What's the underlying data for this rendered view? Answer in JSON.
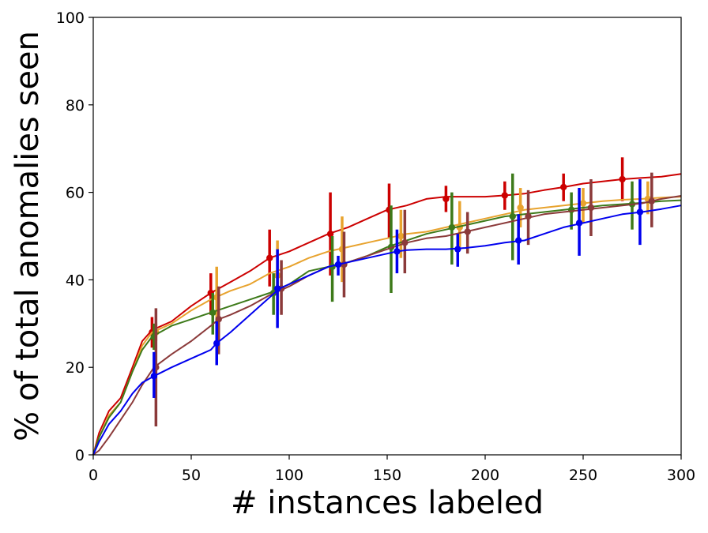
{
  "chart_data": {
    "type": "line",
    "title": "",
    "xlabel": "# instances labeled",
    "ylabel": "% of total anomalies seen",
    "xlim": [
      0,
      300
    ],
    "ylim": [
      0,
      100
    ],
    "xticks": [
      0,
      50,
      100,
      150,
      200,
      250,
      300
    ],
    "yticks": [
      0,
      20,
      40,
      60,
      80,
      100
    ],
    "xtick_labels": [
      "0",
      "50",
      "100",
      "150",
      "200",
      "250",
      "300"
    ],
    "ytick_labels": [
      "0",
      "20",
      "40",
      "60",
      "80",
      "100"
    ],
    "grid": false,
    "legend": "none",
    "series": [
      {
        "name": "red",
        "color": "#cc0000",
        "x": [
          0,
          3,
          8,
          14,
          20,
          25,
          30,
          40,
          50,
          60,
          70,
          80,
          90,
          100,
          110,
          120,
          130,
          140,
          150,
          160,
          170,
          180,
          190,
          200,
          210,
          220,
          230,
          240,
          250,
          260,
          270,
          280,
          290,
          300
        ],
        "y": [
          0,
          5,
          10,
          13,
          20,
          26,
          28.5,
          30.5,
          34,
          37,
          39.5,
          42,
          45,
          46.5,
          48.5,
          50.5,
          52,
          54,
          56,
          57,
          58.5,
          59,
          59,
          59,
          59.3,
          59.7,
          60.5,
          61.2,
          62,
          62.5,
          63,
          63.3,
          63.6,
          64.2
        ],
        "err_x": [
          30,
          60,
          90,
          121,
          151,
          180,
          210,
          240,
          270
        ],
        "err_y": [
          28,
          37,
          45,
          50.5,
          56,
          58.5,
          59.3,
          61.2,
          63
        ],
        "err_lo": [
          24.5,
          32,
          38.5,
          41,
          49.5,
          55.5,
          56,
          58,
          58
        ],
        "err_hi": [
          31.5,
          41.5,
          51.5,
          60,
          62,
          61.5,
          62.5,
          64.3,
          68
        ]
      },
      {
        "name": "orange",
        "color": "#e8a32e",
        "x": [
          0,
          3,
          8,
          14,
          20,
          25,
          30,
          40,
          50,
          60,
          70,
          80,
          90,
          100,
          110,
          120,
          130,
          140,
          150,
          160,
          170,
          180,
          190,
          200,
          210,
          220,
          230,
          240,
          250,
          260,
          270,
          280,
          290,
          300
        ],
        "y": [
          0,
          4,
          9,
          12,
          19,
          25,
          28,
          30,
          33,
          35.5,
          37.5,
          39,
          41.5,
          43,
          45,
          46.5,
          47.5,
          48.5,
          49.5,
          50.5,
          51,
          52,
          53,
          54,
          55,
          56,
          56.5,
          57,
          57.5,
          58,
          58.3,
          58.5,
          58.8,
          59
        ],
        "err_x": [
          32,
          63,
          94,
          127,
          157,
          187,
          218,
          250,
          283
        ],
        "err_y": [
          28,
          36,
          41,
          47,
          50,
          52,
          56.5,
          57.5,
          58.5
        ],
        "err_lo": [
          26,
          29.5,
          33,
          39.5,
          45,
          47.5,
          52,
          53,
          55
        ],
        "err_hi": [
          30,
          43,
          49,
          54.5,
          56,
          58,
          61,
          61,
          62.5
        ]
      },
      {
        "name": "green",
        "color": "#3d7a1a",
        "x": [
          0,
          3,
          8,
          14,
          20,
          25,
          30,
          40,
          50,
          60,
          70,
          80,
          90,
          100,
          110,
          120,
          130,
          140,
          150,
          160,
          170,
          180,
          190,
          200,
          210,
          220,
          230,
          240,
          250,
          260,
          270,
          280,
          290,
          300
        ],
        "y": [
          0,
          4,
          8.5,
          12,
          19,
          24,
          27,
          29.5,
          31,
          32.5,
          34,
          35.5,
          37,
          39,
          42,
          43,
          44,
          45.5,
          47.5,
          49,
          50.5,
          51.5,
          52.5,
          53.5,
          54.5,
          55,
          55.5,
          56,
          56.5,
          57,
          57.3,
          57.6,
          58,
          58.2
        ],
        "err_x": [
          31,
          61,
          92,
          122,
          152,
          183,
          214,
          244,
          275
        ],
        "err_y": [
          27,
          32.5,
          37,
          43,
          47.5,
          52,
          54.5,
          56,
          57.3
        ],
        "err_lo": [
          24,
          27.5,
          32,
          35,
          37,
          43.5,
          44.5,
          51.5,
          51.5
        ],
        "err_hi": [
          30,
          37,
          41.5,
          50,
          57,
          60,
          64.3,
          60,
          62.5
        ]
      },
      {
        "name": "brown",
        "color": "#8b3a3a",
        "x": [
          0,
          3,
          8,
          14,
          20,
          25,
          31,
          40,
          50,
          60,
          64,
          70,
          80,
          90,
          100,
          110,
          120,
          130,
          140,
          150,
          160,
          170,
          180,
          190,
          200,
          210,
          220,
          230,
          240,
          250,
          260,
          270,
          280,
          290,
          300
        ],
        "y": [
          0,
          1,
          4,
          8,
          12,
          16,
          20,
          23,
          26,
          29.5,
          31,
          32,
          34,
          36.5,
          38.5,
          41,
          43,
          44,
          45.5,
          47,
          48.5,
          49.5,
          50,
          51,
          52,
          53,
          54,
          55,
          55.5,
          56,
          56.5,
          57,
          57.5,
          58.5,
          59.2
        ],
        "err_x": [
          32,
          64,
          96,
          128,
          159,
          191,
          222,
          254,
          285
        ],
        "err_y": [
          20,
          31,
          38,
          43.5,
          48.5,
          51,
          54.5,
          56.5,
          58
        ],
        "err_lo": [
          6.5,
          23,
          32,
          36,
          41.5,
          46,
          48,
          50,
          52
        ],
        "err_hi": [
          33.5,
          38.5,
          44.5,
          51,
          56,
          55.5,
          60.5,
          63,
          64.5
        ]
      },
      {
        "name": "blue",
        "color": "#0000ee",
        "x": [
          0,
          3,
          8,
          14,
          20,
          25,
          31,
          40,
          50,
          60,
          63,
          70,
          80,
          90,
          95,
          100,
          110,
          120,
          130,
          140,
          150,
          155,
          160,
          170,
          180,
          190,
          200,
          210,
          220,
          230,
          240,
          250,
          260,
          270,
          280,
          290,
          300
        ],
        "y": [
          0,
          3,
          7,
          10,
          14,
          16.5,
          18,
          20,
          22,
          24,
          25.5,
          28,
          32,
          36,
          38,
          39,
          41,
          43,
          44,
          45,
          46,
          46.5,
          46.8,
          47,
          47,
          47.3,
          47.8,
          48.5,
          49,
          50.5,
          52,
          53,
          54,
          55,
          55.5,
          56.2,
          57
        ],
        "err_x": [
          31,
          63,
          94,
          125,
          155,
          186,
          217,
          248,
          279
        ],
        "err_y": [
          18,
          25.5,
          38,
          43.5,
          46.5,
          47,
          49,
          53,
          55.5
        ],
        "err_lo": [
          13,
          20.5,
          29,
          41,
          41.5,
          43,
          43.5,
          45.5,
          48
        ],
        "err_hi": [
          23.5,
          30.5,
          47,
          45.5,
          51.5,
          50.5,
          55,
          61,
          63
        ]
      }
    ]
  }
}
